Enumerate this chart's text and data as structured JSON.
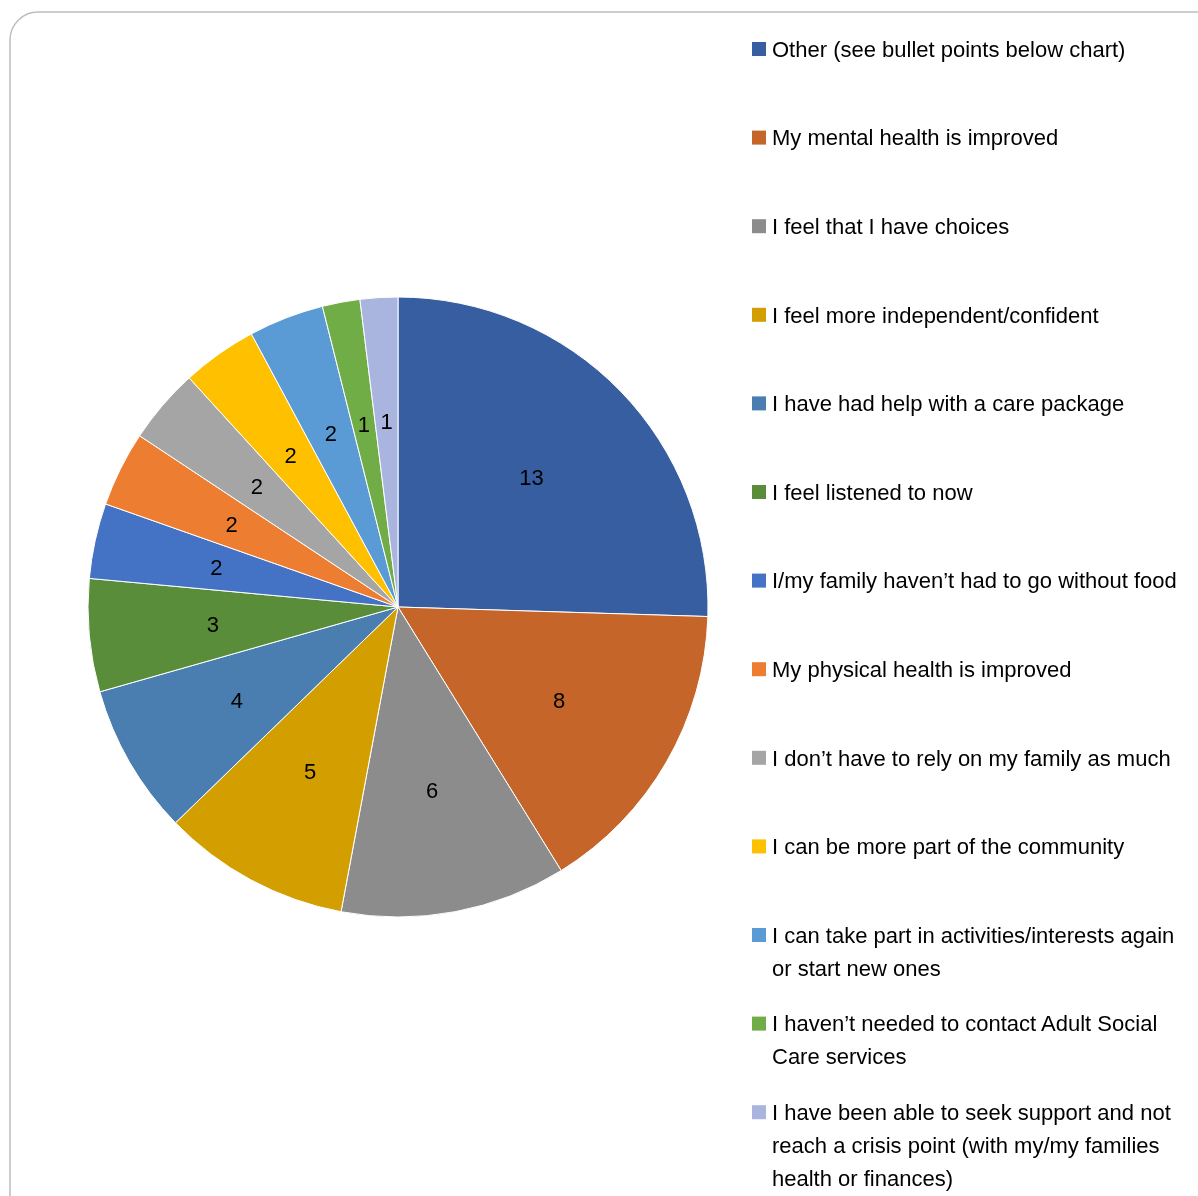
{
  "chart_data": {
    "type": "pie",
    "categories": [
      "Other (see bullet points below chart)",
      "My mental health is improved",
      "I feel that I have choices",
      "I feel more independent/confident",
      "I have had help with a care package",
      "I feel listened to now",
      "I/my family haven’t had to go without food",
      "My physical health is improved",
      "I don’t have to rely on my family as much",
      "I can be more part of the community",
      "I can take part in activities/interests again or start new ones",
      "I haven’t needed to contact Adult Social Care services",
      "I have been able to seek support and not reach a crisis point (with my/my families health or finances)"
    ],
    "values": [
      13,
      8,
      6,
      5,
      4,
      3,
      2,
      2,
      2,
      2,
      2,
      1,
      1
    ],
    "colors": [
      "#385ea2",
      "#c5652a",
      "#8c8c8c",
      "#d39e00",
      "#4a7db0",
      "#5a8d3a",
      "#4472c4",
      "#ed7d31",
      "#a5a5a5",
      "#ffc000",
      "#5b9bd5",
      "#70ad47",
      "#a9b5de"
    ],
    "data_labels": true,
    "legend": "right"
  }
}
